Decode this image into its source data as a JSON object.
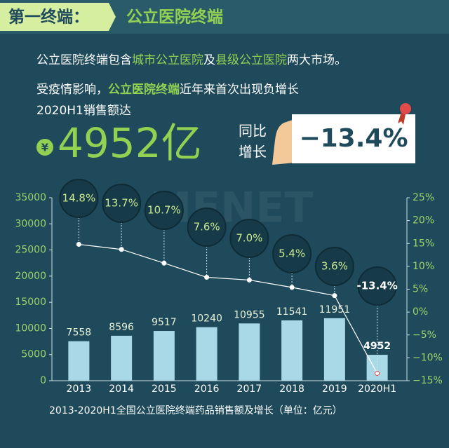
{
  "header": {
    "tag": "第一终端：",
    "title": "公立医院终端"
  },
  "intro": {
    "line1": [
      "公立医院终端包含",
      "城市公立医院",
      "及",
      "县级公立医院",
      "两大市场。"
    ],
    "line2": [
      "受疫情影响，",
      "公立医院终端",
      "近年来首次出现负增长"
    ],
    "line3": "2020H1销售额达"
  },
  "highlight": {
    "currency": "¥",
    "amount": "4952亿",
    "growth_label": [
      "同比",
      "增长"
    ],
    "growth": "−13.4%"
  },
  "watermark": "MENET",
  "chart_data": {
    "type": "bar",
    "categories": [
      "2013",
      "2014",
      "2015",
      "2016",
      "2017",
      "2018",
      "2019",
      "2020H1"
    ],
    "series": [
      {
        "type": "bar",
        "color": "#a9d8e6",
        "values": [
          7558,
          8596,
          9517,
          10240,
          10955,
          11541,
          11951,
          4952
        ]
      },
      {
        "type": "line",
        "axis": "y2",
        "color": "#ffffff",
        "values": [
          14.8,
          13.7,
          10.7,
          7.6,
          7.0,
          5.4,
          3.6,
          -13.4
        ],
        "value_labels": [
          "14.8%",
          "13.7%",
          "10.7%",
          "7.6%",
          "7.0%",
          "5.4%",
          "3.6%",
          "-13.4%"
        ]
      }
    ],
    "ylim": [
      0,
      35000
    ],
    "yticks": [
      0,
      5000,
      10000,
      15000,
      20000,
      25000,
      30000,
      35000
    ],
    "y2lim": [
      -15,
      25
    ],
    "y2ticks": [
      {
        "value": -15,
        "label": "−15%"
      },
      {
        "value": -10,
        "label": "−10%"
      },
      {
        "value": -5,
        "label": "−5%"
      },
      {
        "value": 0,
        "label": "0%"
      },
      {
        "value": 5,
        "label": "5%"
      },
      {
        "value": 10,
        "label": "10%"
      },
      {
        "value": 15,
        "label": "15%"
      },
      {
        "value": 20,
        "label": "20%"
      },
      {
        "value": 25,
        "label": "25%"
      }
    ],
    "caption": "2013-2020H1全国公立医院终端药品销售额及增长（单位：亿元）"
  }
}
